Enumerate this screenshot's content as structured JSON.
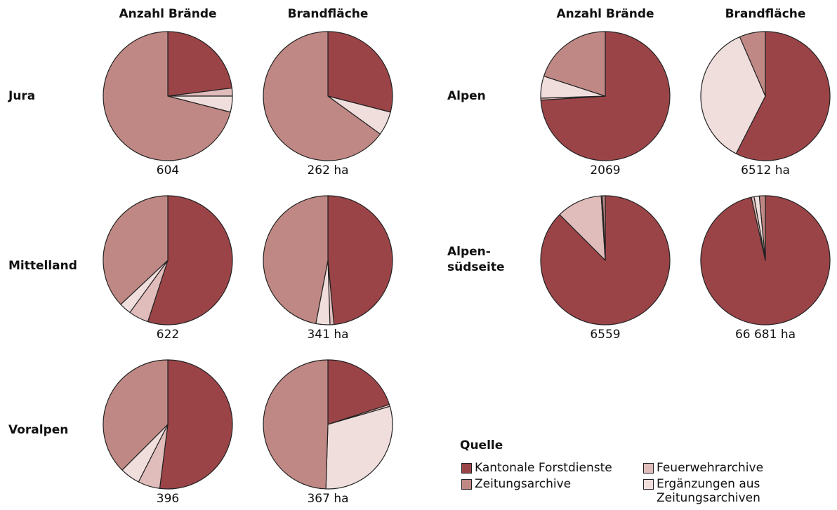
{
  "column_titles": [
    "Anzahl Brände",
    "Brandfläche"
  ],
  "rows": [
    [
      "Jura"
    ],
    [
      "Mittelland"
    ],
    [
      "Voralpen"
    ],
    [
      "Alpen"
    ],
    [
      "Alpen-",
      "südseite"
    ]
  ],
  "legend": {
    "title": "Quelle",
    "labels": [
      "Kantonale Forstdienste",
      "Feuerwehrarchive",
      "Ergänzungen aus Zeitungsarchiven",
      "Zeitungsarchive"
    ],
    "colors": [
      "#9b4448",
      "#e0bcbb",
      "#f0dedd",
      "#c08884"
    ]
  },
  "chart_data": [
    {
      "type": "pie",
      "values": [
        23,
        2,
        4,
        71
      ],
      "caption": "604"
    },
    {
      "type": "pie",
      "values": [
        29,
        0,
        6,
        65
      ],
      "caption": "262 ha"
    },
    {
      "type": "pie",
      "values": [
        55,
        5,
        3,
        37
      ],
      "caption": "622"
    },
    {
      "type": "pie",
      "values": [
        48.5,
        1,
        3.5,
        47
      ],
      "caption": "341 ha"
    },
    {
      "type": "pie",
      "values": [
        52,
        5.5,
        5,
        37.5
      ],
      "caption": "396"
    },
    {
      "type": "pie",
      "values": [
        20,
        0.5,
        30,
        49.5
      ],
      "caption": "367 ha"
    },
    {
      "type": "pie",
      "values": [
        74,
        0.5,
        5.5,
        20
      ],
      "caption": "2069"
    },
    {
      "type": "pie",
      "values": [
        57.5,
        0,
        36,
        6.5
      ],
      "caption": "6512 ha"
    },
    {
      "type": "pie",
      "values": [
        87.5,
        11.5,
        0.3,
        0.7
      ],
      "caption": "6559"
    },
    {
      "type": "pie",
      "values": [
        96.5,
        0.7,
        1.3,
        1.5
      ],
      "caption": "66 681 ha"
    }
  ]
}
